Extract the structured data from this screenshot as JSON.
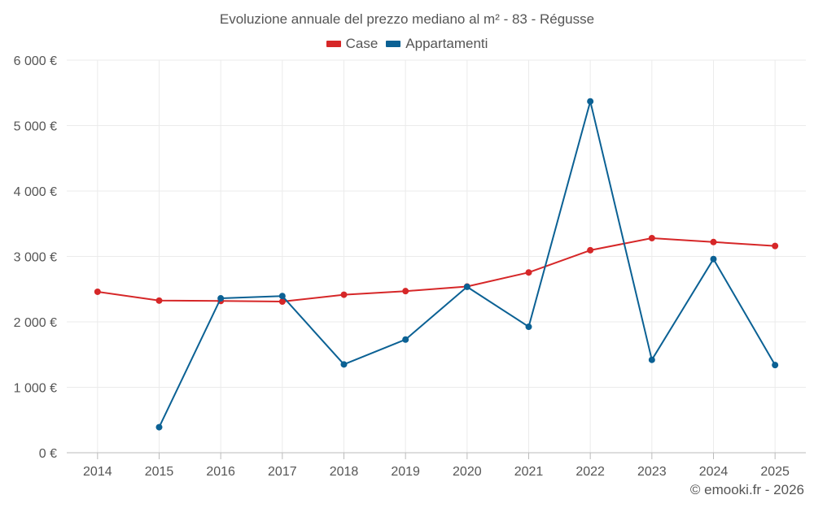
{
  "chart_data": {
    "type": "line",
    "title": "Evoluzione annuale del prezzo mediano al m² - 83 - Régusse",
    "categories": [
      "2014",
      "2015",
      "2016",
      "2017",
      "2018",
      "2019",
      "2020",
      "2021",
      "2022",
      "2023",
      "2024",
      "2025"
    ],
    "series": [
      {
        "name": "Case",
        "color": "#d62728",
        "values": [
          2460,
          2325,
          2320,
          2310,
          2415,
          2470,
          2540,
          2755,
          3095,
          3280,
          3220,
          3160
        ]
      },
      {
        "name": "Appartamenti",
        "color": "#0b6194",
        "values": [
          null,
          390,
          2360,
          2395,
          1350,
          1730,
          2535,
          1925,
          5370,
          1420,
          2960,
          1340
        ]
      }
    ],
    "yticks": [
      0,
      1000,
      2000,
      3000,
      4000,
      5000,
      6000
    ],
    "ytick_labels": [
      "0 €",
      "1 000 €",
      "2 000 €",
      "3 000 €",
      "4 000 €",
      "5 000 €",
      "6 000 €"
    ],
    "ylim": [
      0,
      6000
    ],
    "xlabel": "",
    "ylabel": "",
    "grid": true,
    "legend": "top-center"
  },
  "footer": "© emooki.fr - 2026"
}
